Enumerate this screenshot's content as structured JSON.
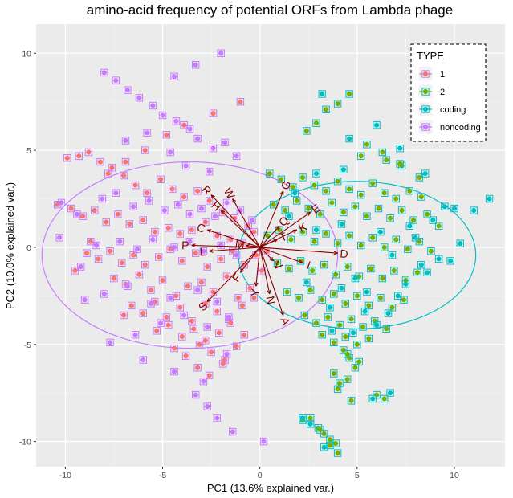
{
  "chart_data": {
    "type": "scatter",
    "title": "amino-acid frequency of potential ORFs from Lambda phage",
    "xlabel": "PC1 (13.6% explained var.)",
    "ylabel": "PC2 (10.0% explained var.)",
    "xlim": [
      -11.5,
      12.6
    ],
    "ylim": [
      -11.3,
      11.5
    ],
    "x_ticks": [
      -10,
      -5,
      0,
      5,
      10
    ],
    "y_ticks": [
      -10,
      -5,
      0,
      5,
      10
    ],
    "grid": true,
    "legend": {
      "title": "TYPE",
      "position": "top-right",
      "entries": [
        "1",
        "2",
        "coding",
        "noncoding"
      ]
    },
    "colors": {
      "1": "#F8766D",
      "2": "#7CAE00",
      "coding": "#00BFC4",
      "noncoding": "#C77CFF",
      "loading": "#8B0000",
      "panel": "#EBEBEB"
    },
    "ellipses": [
      {
        "series": "noncoding",
        "center": [
          -3.6,
          -0.4
        ],
        "rx": 7.6,
        "ry": 4.8,
        "angle": 0
      },
      {
        "series": "coding",
        "center": [
          5.0,
          -0.4
        ],
        "rx": 6.1,
        "ry": 3.8,
        "angle": 0
      }
    ],
    "loadings": [
      {
        "label": "R",
        "x": -2.5,
        "y": 2.7
      },
      {
        "label": "W",
        "x": -1.4,
        "y": 2.5
      },
      {
        "label": "H",
        "x": -2.0,
        "y": 1.9
      },
      {
        "label": "C",
        "x": -2.7,
        "y": 0.9
      },
      {
        "label": "P",
        "x": -3.5,
        "y": 0.1
      },
      {
        "label": "L",
        "x": -2.6,
        "y": -0.2
      },
      {
        "label": "M",
        "x": -0.7,
        "y": 0.1
      },
      {
        "label": "S",
        "x": -2.7,
        "y": -2.8
      },
      {
        "label": "F",
        "x": -1.0,
        "y": -1.3
      },
      {
        "label": "Y",
        "x": -0.2,
        "y": -2.0
      },
      {
        "label": "N",
        "x": 0.5,
        "y": -2.4
      },
      {
        "label": "A",
        "x": 1.2,
        "y": -3.5
      },
      {
        "label": "G",
        "x": 1.2,
        "y": 2.9
      },
      {
        "label": "E",
        "x": 2.6,
        "y": 1.8
      },
      {
        "label": "K",
        "x": 1.9,
        "y": 0.9
      },
      {
        "label": "I",
        "x": 2.2,
        "y": -0.8
      },
      {
        "label": "T",
        "x": 0.9,
        "y": 0.4
      },
      {
        "label": "V",
        "x": 0.7,
        "y": -0.7
      },
      {
        "label": "Q",
        "x": 1.0,
        "y": 1.1
      },
      {
        "label": "D",
        "x": 4.0,
        "y": -0.3
      }
    ],
    "series": [
      {
        "name": "1",
        "outline": "noncoding",
        "x": [
          -9.9,
          -9.3,
          -8.8,
          -8.2,
          -7.6,
          -7.0,
          -6.4,
          -5.8,
          -5.1,
          -4.5,
          -3.9,
          -3.2,
          -2.6,
          -1.9,
          -1.3,
          -0.6,
          -10.4,
          -9.7,
          -9.1,
          -8.5,
          -7.9,
          -7.3,
          -6.7,
          -6.0,
          -5.4,
          -4.7,
          -4.1,
          -3.5,
          -2.8,
          -2.2,
          -1.5,
          -0.9,
          -0.3,
          -8.9,
          -8.3,
          -7.7,
          -7.1,
          -6.5,
          -5.9,
          -5.2,
          -4.6,
          -4.0,
          -3.3,
          -2.7,
          -2.0,
          -1.4,
          -0.8,
          -0.2,
          0.4,
          -7.5,
          -6.9,
          -6.2,
          -5.6,
          -5.0,
          -4.3,
          -3.7,
          -3.0,
          -2.4,
          -1.7,
          -1.1,
          -0.5,
          0.1,
          -6.6,
          -6.0,
          -5.4,
          -4.8,
          -4.1,
          -3.5,
          -2.8,
          -2.2,
          -1.6,
          -0.9,
          -0.3,
          -5.3,
          -4.7,
          -4.0,
          -3.4,
          -2.8,
          -2.1,
          -1.5,
          -0.8,
          -4.4,
          -3.8,
          -3.1,
          -2.5,
          -1.8,
          -1.2,
          -3.2,
          -2.6,
          -1.9,
          -7.8,
          -6.9,
          -5.9,
          -4.8,
          -3.9,
          -2.4,
          -1.0,
          -9.5,
          -8.7,
          -7.0
        ],
        "y": [
          4.6,
          4.7,
          4.9,
          4.4,
          4.1,
          3.7,
          3.2,
          2.8,
          3.5,
          3.0,
          2.6,
          2.9,
          2.4,
          1.8,
          1.5,
          1.1,
          2.2,
          2.0,
          1.6,
          1.9,
          1.3,
          1.7,
          1.2,
          1.4,
          0.8,
          1.0,
          0.7,
          0.9,
          1.3,
          0.6,
          0.4,
          0.2,
          0.8,
          -0.3,
          -0.6,
          -0.2,
          -0.8,
          -0.4,
          -0.9,
          -0.5,
          -0.1,
          -0.7,
          -0.3,
          -1.0,
          -0.6,
          -0.2,
          -0.9,
          -0.4,
          -0.2,
          -1.6,
          -1.9,
          -1.4,
          -2.2,
          -1.7,
          -2.5,
          -2.0,
          -1.8,
          -2.3,
          -1.5,
          -2.6,
          -2.1,
          -1.2,
          -3.0,
          -3.4,
          -2.8,
          -3.6,
          -3.1,
          -3.8,
          -2.9,
          -3.3,
          -3.7,
          -3.0,
          -2.6,
          -4.3,
          -4.0,
          -4.6,
          -4.2,
          -4.8,
          -4.4,
          -3.9,
          -4.5,
          -5.2,
          -5.6,
          -5.0,
          -5.4,
          -5.8,
          -5.1,
          -6.2,
          -6.6,
          -6.0,
          3.8,
          4.4,
          5.0,
          5.8,
          6.3,
          6.9,
          7.5,
          -1.2,
          0.3,
          -3.5
        ]
      },
      {
        "name": "noncoding",
        "outline": "noncoding",
        "x": [
          -10.2,
          -9.4,
          -8.1,
          -7.4,
          -6.5,
          -5.7,
          -4.9,
          -4.2,
          -3.6,
          -3.0,
          -2.3,
          -1.7,
          -1.0,
          -0.4,
          -10.3,
          -9.2,
          -8.4,
          -7.2,
          -6.3,
          -5.5,
          -4.4,
          -3.6,
          -2.9,
          -2.0,
          -1.2,
          -9.0,
          -8.0,
          -6.8,
          -5.6,
          -4.6,
          -3.2,
          -2.2,
          -7.7,
          -6.4,
          -5.1,
          -3.9,
          -2.7,
          -1.6,
          -6.0,
          -4.4,
          -2.9,
          -1.7,
          -4.4,
          -3.3,
          -2.0,
          -8.0,
          -7.4,
          -6.8,
          -6.2,
          -5.5,
          -5.0,
          -4.3,
          -3.6,
          -3.2,
          -2.4,
          -1.8,
          -1.2,
          -6.9,
          -5.8,
          -4.6,
          -3.8,
          -2.6,
          -3.3,
          -2.7,
          -2.2,
          -1.4,
          0.2
        ],
        "y": [
          2.3,
          1.7,
          2.5,
          2.8,
          2.1,
          2.4,
          1.9,
          2.2,
          1.7,
          2.0,
          1.6,
          2.3,
          1.9,
          1.4,
          0.5,
          -1.0,
          0.1,
          0.3,
          -0.1,
          0.4,
          0.0,
          0.3,
          -0.2,
          0.1,
          -0.4,
          -2.7,
          -2.4,
          -2.0,
          -2.9,
          -2.6,
          -2.2,
          -2.8,
          -4.9,
          -4.5,
          -3.9,
          -3.5,
          -4.1,
          -3.6,
          -5.8,
          -6.4,
          -6.9,
          -5.5,
          8.8,
          9.4,
          10.0,
          9.0,
          8.6,
          8.1,
          7.7,
          7.3,
          6.8,
          6.5,
          6.1,
          5.6,
          5.1,
          5.4,
          4.7,
          5.5,
          5.9,
          4.9,
          4.2,
          3.9,
          -7.6,
          -8.2,
          -8.8,
          -9.5,
          -10.0
        ]
      },
      {
        "name": "2",
        "outline": "coding",
        "x": [
          0.5,
          1.1,
          1.7,
          2.2,
          2.8,
          3.4,
          4.0,
          4.6,
          5.2,
          5.8,
          6.4,
          7.0,
          7.7,
          8.3,
          0.7,
          1.3,
          1.9,
          2.5,
          3.1,
          3.7,
          4.3,
          4.9,
          5.5,
          6.1,
          6.7,
          7.3,
          7.9,
          8.6,
          9.2,
          0.4,
          1.0,
          1.6,
          2.2,
          2.8,
          3.4,
          4.0,
          4.6,
          5.2,
          5.8,
          6.4,
          7.0,
          7.6,
          8.2,
          8.8,
          0.9,
          1.5,
          2.1,
          2.7,
          3.3,
          3.9,
          4.5,
          5.1,
          5.7,
          6.3,
          6.9,
          7.5,
          8.1,
          1.4,
          2.0,
          2.6,
          3.2,
          3.8,
          4.4,
          5.0,
          5.6,
          6.2,
          6.8,
          7.4,
          2.3,
          2.9,
          3.5,
          4.1,
          4.7,
          5.3,
          5.9,
          6.5,
          3.2,
          3.8,
          4.4,
          5.0,
          5.6,
          4.3,
          4.6,
          4.9,
          3.8,
          4.1,
          4.5,
          5.1,
          4.5,
          4.0,
          4.7,
          6.0,
          6.4,
          2.6,
          2.2,
          3.0,
          3.6,
          3.3,
          3.9,
          4.0,
          3.6,
          3.1,
          5.2,
          6.5,
          7.3,
          8.2,
          2.4,
          2.9,
          3.4,
          4.0,
          4.6,
          5.5,
          6.3,
          7.2
        ],
        "y": [
          3.8,
          3.5,
          3.1,
          3.6,
          3.2,
          2.9,
          3.4,
          3.0,
          2.7,
          3.3,
          2.8,
          2.5,
          2.9,
          2.6,
          2.2,
          1.9,
          2.4,
          2.0,
          1.7,
          2.3,
          1.8,
          2.1,
          1.6,
          2.0,
          1.5,
          1.9,
          1.4,
          1.7,
          1.1,
          0.6,
          0.9,
          0.4,
          0.8,
          0.3,
          0.7,
          0.2,
          0.6,
          0.1,
          0.5,
          0.0,
          0.4,
          -0.1,
          0.3,
          -0.2,
          -0.8,
          -1.1,
          -0.7,
          -1.2,
          -0.9,
          -1.4,
          -1.0,
          -1.5,
          -1.1,
          -1.6,
          -1.2,
          -1.7,
          -1.3,
          -2.3,
          -2.6,
          -2.2,
          -2.7,
          -2.4,
          -2.9,
          -2.5,
          -3.0,
          -2.6,
          -3.1,
          -2.7,
          -3.5,
          -3.9,
          -3.6,
          -4.0,
          -3.7,
          -4.1,
          -3.8,
          -4.2,
          -4.5,
          -4.9,
          -4.6,
          -5.0,
          -4.7,
          -5.3,
          -5.7,
          -6.2,
          -6.5,
          -7.0,
          -6.8,
          -5.9,
          -5.5,
          -7.3,
          -7.9,
          -7.6,
          -7.8,
          -8.8,
          -8.9,
          -9.3,
          -9.9,
          -9.6,
          -10.1,
          -10.6,
          -10.2,
          -9.4,
          4.7,
          4.5,
          4.2,
          3.6,
          6.0,
          6.4,
          7.1,
          7.4,
          7.9,
          5.3,
          4.9,
          4.3
        ]
      },
      {
        "name": "coding",
        "outline": "coding",
        "x": [
          3.2,
          4.6,
          6.0,
          7.2,
          8.5,
          9.5,
          10.0,
          11.0,
          11.8,
          10.3,
          9.8,
          9.2,
          8.6,
          8.0,
          7.5,
          6.8,
          6.2,
          5.5,
          4.9,
          4.2,
          3.6,
          2.9,
          2.4,
          1.8,
          8.9,
          8.3,
          7.7,
          7.1,
          6.6,
          6.0,
          5.4,
          4.8,
          4.2,
          3.7,
          2.2,
          2.6,
          3.3,
          5.8,
          6.7,
          1.5,
          2.9,
          4.3
        ],
        "y": [
          7.9,
          5.6,
          6.3,
          5.1,
          3.8,
          2.1,
          2.0,
          1.9,
          2.5,
          0.2,
          -0.7,
          -0.6,
          -1.3,
          0.5,
          -1.9,
          -0.4,
          0.8,
          -2.3,
          -1.6,
          1.2,
          -3.1,
          0.9,
          -1.8,
          2.8,
          1.4,
          -0.9,
          1.1,
          -2.5,
          -3.4,
          -4.0,
          -3.3,
          -4.4,
          -2.1,
          -4.3,
          -8.8,
          -9.1,
          -10.3,
          -7.8,
          -7.5,
          1.6,
          3.8,
          4.0
        ]
      }
    ]
  }
}
